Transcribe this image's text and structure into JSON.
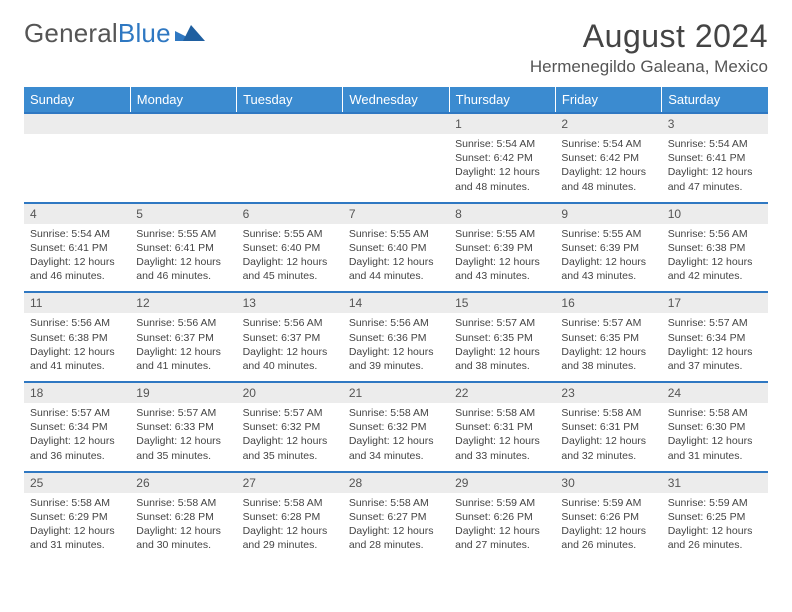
{
  "brand": {
    "word1": "General",
    "word2": "Blue"
  },
  "colors": {
    "header_bg": "#3b8bd0",
    "header_text": "#ffffff",
    "accent_border": "#2f78c2",
    "daynum_bg": "#ececec",
    "body_text": "#444444",
    "logo_blue": "#2f78c2",
    "logo_gray": "#555555",
    "page_bg": "#ffffff"
  },
  "title": "August 2024",
  "location": "Hermenegildo Galeana, Mexico",
  "weekdays": [
    "Sunday",
    "Monday",
    "Tuesday",
    "Wednesday",
    "Thursday",
    "Friday",
    "Saturday"
  ],
  "weeks": [
    {
      "days": [
        {
          "n": "",
          "sunrise": "",
          "sunset": "",
          "daylight": ""
        },
        {
          "n": "",
          "sunrise": "",
          "sunset": "",
          "daylight": ""
        },
        {
          "n": "",
          "sunrise": "",
          "sunset": "",
          "daylight": ""
        },
        {
          "n": "",
          "sunrise": "",
          "sunset": "",
          "daylight": ""
        },
        {
          "n": "1",
          "sunrise": "Sunrise: 5:54 AM",
          "sunset": "Sunset: 6:42 PM",
          "daylight": "Daylight: 12 hours and 48 minutes."
        },
        {
          "n": "2",
          "sunrise": "Sunrise: 5:54 AM",
          "sunset": "Sunset: 6:42 PM",
          "daylight": "Daylight: 12 hours and 48 minutes."
        },
        {
          "n": "3",
          "sunrise": "Sunrise: 5:54 AM",
          "sunset": "Sunset: 6:41 PM",
          "daylight": "Daylight: 12 hours and 47 minutes."
        }
      ]
    },
    {
      "days": [
        {
          "n": "4",
          "sunrise": "Sunrise: 5:54 AM",
          "sunset": "Sunset: 6:41 PM",
          "daylight": "Daylight: 12 hours and 46 minutes."
        },
        {
          "n": "5",
          "sunrise": "Sunrise: 5:55 AM",
          "sunset": "Sunset: 6:41 PM",
          "daylight": "Daylight: 12 hours and 46 minutes."
        },
        {
          "n": "6",
          "sunrise": "Sunrise: 5:55 AM",
          "sunset": "Sunset: 6:40 PM",
          "daylight": "Daylight: 12 hours and 45 minutes."
        },
        {
          "n": "7",
          "sunrise": "Sunrise: 5:55 AM",
          "sunset": "Sunset: 6:40 PM",
          "daylight": "Daylight: 12 hours and 44 minutes."
        },
        {
          "n": "8",
          "sunrise": "Sunrise: 5:55 AM",
          "sunset": "Sunset: 6:39 PM",
          "daylight": "Daylight: 12 hours and 43 minutes."
        },
        {
          "n": "9",
          "sunrise": "Sunrise: 5:55 AM",
          "sunset": "Sunset: 6:39 PM",
          "daylight": "Daylight: 12 hours and 43 minutes."
        },
        {
          "n": "10",
          "sunrise": "Sunrise: 5:56 AM",
          "sunset": "Sunset: 6:38 PM",
          "daylight": "Daylight: 12 hours and 42 minutes."
        }
      ]
    },
    {
      "days": [
        {
          "n": "11",
          "sunrise": "Sunrise: 5:56 AM",
          "sunset": "Sunset: 6:38 PM",
          "daylight": "Daylight: 12 hours and 41 minutes."
        },
        {
          "n": "12",
          "sunrise": "Sunrise: 5:56 AM",
          "sunset": "Sunset: 6:37 PM",
          "daylight": "Daylight: 12 hours and 41 minutes."
        },
        {
          "n": "13",
          "sunrise": "Sunrise: 5:56 AM",
          "sunset": "Sunset: 6:37 PM",
          "daylight": "Daylight: 12 hours and 40 minutes."
        },
        {
          "n": "14",
          "sunrise": "Sunrise: 5:56 AM",
          "sunset": "Sunset: 6:36 PM",
          "daylight": "Daylight: 12 hours and 39 minutes."
        },
        {
          "n": "15",
          "sunrise": "Sunrise: 5:57 AM",
          "sunset": "Sunset: 6:35 PM",
          "daylight": "Daylight: 12 hours and 38 minutes."
        },
        {
          "n": "16",
          "sunrise": "Sunrise: 5:57 AM",
          "sunset": "Sunset: 6:35 PM",
          "daylight": "Daylight: 12 hours and 38 minutes."
        },
        {
          "n": "17",
          "sunrise": "Sunrise: 5:57 AM",
          "sunset": "Sunset: 6:34 PM",
          "daylight": "Daylight: 12 hours and 37 minutes."
        }
      ]
    },
    {
      "days": [
        {
          "n": "18",
          "sunrise": "Sunrise: 5:57 AM",
          "sunset": "Sunset: 6:34 PM",
          "daylight": "Daylight: 12 hours and 36 minutes."
        },
        {
          "n": "19",
          "sunrise": "Sunrise: 5:57 AM",
          "sunset": "Sunset: 6:33 PM",
          "daylight": "Daylight: 12 hours and 35 minutes."
        },
        {
          "n": "20",
          "sunrise": "Sunrise: 5:57 AM",
          "sunset": "Sunset: 6:32 PM",
          "daylight": "Daylight: 12 hours and 35 minutes."
        },
        {
          "n": "21",
          "sunrise": "Sunrise: 5:58 AM",
          "sunset": "Sunset: 6:32 PM",
          "daylight": "Daylight: 12 hours and 34 minutes."
        },
        {
          "n": "22",
          "sunrise": "Sunrise: 5:58 AM",
          "sunset": "Sunset: 6:31 PM",
          "daylight": "Daylight: 12 hours and 33 minutes."
        },
        {
          "n": "23",
          "sunrise": "Sunrise: 5:58 AM",
          "sunset": "Sunset: 6:31 PM",
          "daylight": "Daylight: 12 hours and 32 minutes."
        },
        {
          "n": "24",
          "sunrise": "Sunrise: 5:58 AM",
          "sunset": "Sunset: 6:30 PM",
          "daylight": "Daylight: 12 hours and 31 minutes."
        }
      ]
    },
    {
      "days": [
        {
          "n": "25",
          "sunrise": "Sunrise: 5:58 AM",
          "sunset": "Sunset: 6:29 PM",
          "daylight": "Daylight: 12 hours and 31 minutes."
        },
        {
          "n": "26",
          "sunrise": "Sunrise: 5:58 AM",
          "sunset": "Sunset: 6:28 PM",
          "daylight": "Daylight: 12 hours and 30 minutes."
        },
        {
          "n": "27",
          "sunrise": "Sunrise: 5:58 AM",
          "sunset": "Sunset: 6:28 PM",
          "daylight": "Daylight: 12 hours and 29 minutes."
        },
        {
          "n": "28",
          "sunrise": "Sunrise: 5:58 AM",
          "sunset": "Sunset: 6:27 PM",
          "daylight": "Daylight: 12 hours and 28 minutes."
        },
        {
          "n": "29",
          "sunrise": "Sunrise: 5:59 AM",
          "sunset": "Sunset: 6:26 PM",
          "daylight": "Daylight: 12 hours and 27 minutes."
        },
        {
          "n": "30",
          "sunrise": "Sunrise: 5:59 AM",
          "sunset": "Sunset: 6:26 PM",
          "daylight": "Daylight: 12 hours and 26 minutes."
        },
        {
          "n": "31",
          "sunrise": "Sunrise: 5:59 AM",
          "sunset": "Sunset: 6:25 PM",
          "daylight": "Daylight: 12 hours and 26 minutes."
        }
      ]
    }
  ]
}
